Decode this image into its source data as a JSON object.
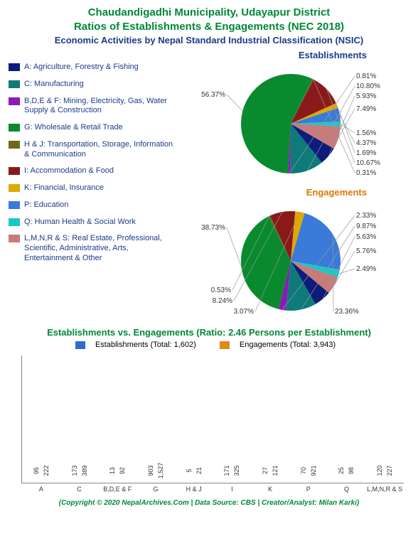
{
  "title_line1": "Chaudandigadhi Municipality, Udayapur District",
  "title_line2": "Ratios of Establishments & Engagements (NEC 2018)",
  "subtitle": "Economic Activities by Nepal Standard Industrial Classification (NSIC)",
  "pie1_title": "Establishments",
  "pie2_title": "Engagements",
  "categories": [
    {
      "code": "A",
      "label": "A: Agriculture, Forestry & Fishing",
      "color": "#0b1c7a"
    },
    {
      "code": "C",
      "label": "C: Manufacturing",
      "color": "#0f7a7a"
    },
    {
      "code": "B,D,E & F",
      "label": "B,D,E & F: Mining, Electricity, Gas, Water Supply & Construction",
      "color": "#8b1ab8"
    },
    {
      "code": "G",
      "label": "G: Wholesale & Retail Trade",
      "color": "#0a8a2e"
    },
    {
      "code": "H & J",
      "label": "H & J: Transportation, Storage, Information & Communication",
      "color": "#6b6b1a"
    },
    {
      "code": "I",
      "label": "I: Accommodation & Food",
      "color": "#8a1a1a"
    },
    {
      "code": "K",
      "label": "K: Financial, Insurance",
      "color": "#e0a800"
    },
    {
      "code": "P",
      "label": "P: Education",
      "color": "#3a7ad9"
    },
    {
      "code": "Q",
      "label": "Q: Human Health & Social Work",
      "color": "#1ac7c7"
    },
    {
      "code": "L,M,N,R & S",
      "label": "L,M,N,R & S: Real Estate, Professional, Scientific, Administrative, Arts, Entertainment & Other",
      "color": "#c97a7a"
    }
  ],
  "pie1_values": [
    5.93,
    10.8,
    0.81,
    56.37,
    0.31,
    10.67,
    1.69,
    4.37,
    1.56,
    7.49
  ],
  "pie2_values": [
    5.63,
    9.87,
    2.33,
    38.73,
    0.53,
    8.24,
    3.07,
    23.36,
    2.49,
    5.76
  ],
  "bar_header": "Establishments vs. Engagements (Ratio: 2.46 Persons per Establishment)",
  "bar_legend_est": "Establishments (Total: 1,602)",
  "bar_legend_eng": "Engagements (Total: 3,943)",
  "bar_est_color": "#2e6bd1",
  "bar_eng_color": "#e08a1a",
  "bar_est": [
    95,
    173,
    13,
    903,
    5,
    171,
    27,
    70,
    25,
    120
  ],
  "bar_eng": [
    222,
    389,
    92,
    1527,
    21,
    325,
    121,
    921,
    98,
    227
  ],
  "bar_labels": [
    "A",
    "C",
    "B,D,E & F",
    "G",
    "H & J",
    "I",
    "K",
    "P",
    "Q",
    "L,M,N,R & S"
  ],
  "bar_ymax": 1600,
  "footer": "(Copyright © 2020 NepalArchives.Com | Data Source: CBS | Creator/Analyst: Milan Karki)",
  "pie_radius": 70,
  "label_fontsize": 10
}
